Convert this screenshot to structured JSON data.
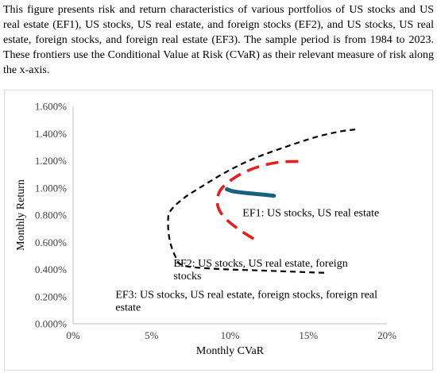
{
  "caption": "This figure presents risk and return characteristics of various portfolios of US stocks and US real estate (EF1), US stocks, US real estate, and foreign stocks (EF2), and US stocks, US real estate, foreign stocks, and foreign real estate (EF3). The sample period is from 1984 to 2023. These frontiers use the Conditional Value at Risk (CVaR) as their relevant measure of risk along the x-axis.",
  "chart_data": {
    "type": "line",
    "title": "",
    "xlabel": "Monthly CVaR",
    "ylabel": "Monthly Return",
    "xlim": [
      0,
      20
    ],
    "ylim": [
      0,
      1.6
    ],
    "x_ticks": [
      "0%",
      "5%",
      "10%",
      "15%",
      "20%"
    ],
    "y_ticks": [
      "0.000%",
      "0.200%",
      "0.400%",
      "0.600%",
      "0.800%",
      "1.000%",
      "1.200%",
      "1.400%",
      "1.600%"
    ],
    "grid": false,
    "legend": "none",
    "series": [
      {
        "name": "EF1: US stocks, US real estate",
        "color": "#17607f",
        "style": "solid",
        "points": [
          [
            9.8,
            0.99
          ],
          [
            10.2,
            0.975
          ],
          [
            11.0,
            0.963
          ],
          [
            12.0,
            0.952
          ],
          [
            12.8,
            0.942
          ]
        ]
      },
      {
        "name": "EF2: US stocks, US real estate, foreign stocks",
        "color": "#e81d1d",
        "style": "dashed",
        "points": [
          [
            11.5,
            0.625
          ],
          [
            10.5,
            0.7
          ],
          [
            9.8,
            0.765
          ],
          [
            9.3,
            0.84
          ],
          [
            9.2,
            0.92
          ],
          [
            9.5,
            1.0
          ],
          [
            10.5,
            1.09
          ],
          [
            11.8,
            1.155
          ],
          [
            13.2,
            1.19
          ],
          [
            14.7,
            1.195
          ]
        ]
      },
      {
        "name": "EF3: US stocks, US real estate, foreign stocks, foreign real estate",
        "color": "#000000",
        "style": "dashed",
        "points": [
          [
            16.0,
            0.375
          ],
          [
            12.0,
            0.392
          ],
          [
            9.0,
            0.405
          ],
          [
            7.0,
            0.43
          ],
          [
            6.5,
            0.5
          ],
          [
            6.15,
            0.62
          ],
          [
            6.05,
            0.75
          ],
          [
            6.2,
            0.83
          ],
          [
            7.0,
            0.92
          ],
          [
            8.2,
            1.01
          ],
          [
            9.8,
            1.12
          ],
          [
            11.5,
            1.215
          ],
          [
            13.5,
            1.3
          ],
          [
            15.5,
            1.375
          ],
          [
            17.0,
            1.415
          ],
          [
            18.0,
            1.43
          ]
        ]
      }
    ],
    "annotations": [
      {
        "text": "EF1: US stocks, US real estate",
        "x": 10.8,
        "y": 0.82
      },
      {
        "text": "EF2: US stocks, US real estate, foreign",
        "x": 6.4,
        "y": 0.45
      },
      {
        "text": "stocks",
        "x": 6.4,
        "y": 0.355
      },
      {
        "text": "EF3: US stocks, US real estate, foreign stocks, foreign real",
        "x": 2.7,
        "y": 0.22
      },
      {
        "text": "estate",
        "x": 2.7,
        "y": 0.125
      }
    ]
  }
}
